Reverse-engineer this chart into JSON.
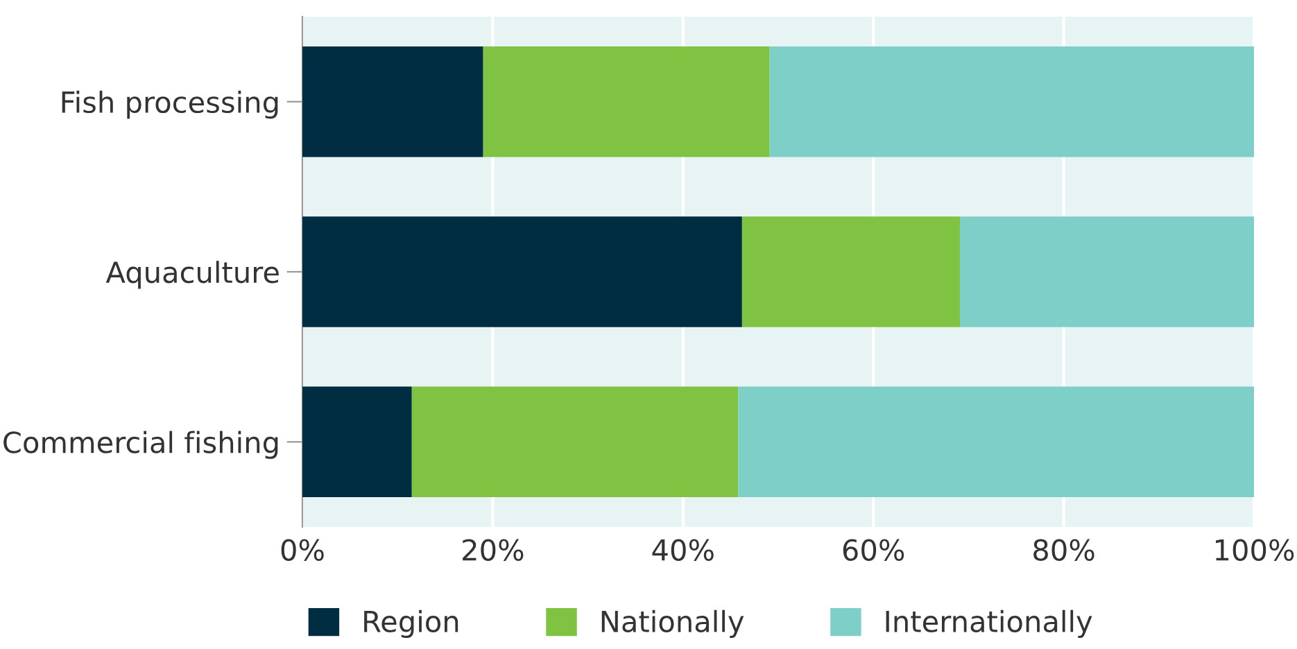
{
  "chart_data": {
    "type": "bar",
    "orientation": "horizontal",
    "stacked": true,
    "categories": [
      "Fish processing",
      "Aquaculture",
      "Commercial fishing"
    ],
    "series": [
      {
        "name": "Region",
        "color": "#002d42",
        "values": [
          19,
          46.2,
          11.5
        ]
      },
      {
        "name": "Nationally",
        "color": "#80c342",
        "values": [
          30.1,
          22.9,
          34.3
        ]
      },
      {
        "name": "Internationally",
        "color": "#7fcfc9",
        "values": [
          50.9,
          30.9,
          54.2
        ]
      }
    ],
    "xlim": [
      0,
      100
    ],
    "xticks": [
      {
        "value": 0,
        "label": "0%"
      },
      {
        "value": 20,
        "label": "20%"
      },
      {
        "value": 40,
        "label": "40%"
      },
      {
        "value": 60,
        "label": "60%"
      },
      {
        "value": 80,
        "label": "80%"
      },
      {
        "value": 100,
        "label": "100%"
      }
    ],
    "grid": "x",
    "legend": "bottom"
  }
}
